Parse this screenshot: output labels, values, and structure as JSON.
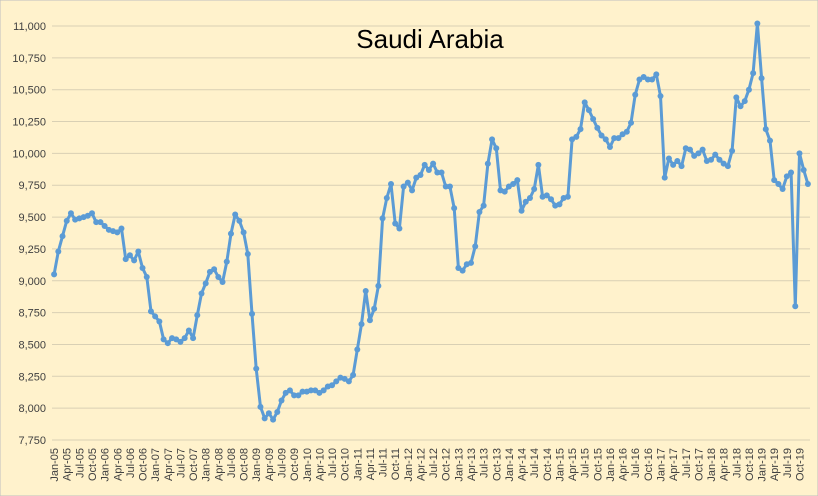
{
  "chart_data": {
    "type": "line",
    "title": "Saudi Arabia",
    "categories": [
      "Jan-05",
      null,
      null,
      "Apr-05",
      null,
      null,
      "Jul-05",
      null,
      null,
      "Oct-05",
      null,
      null,
      "Jan-06",
      null,
      null,
      "Apr-06",
      null,
      null,
      "Jul-06",
      null,
      null,
      "Oct-06",
      null,
      null,
      "Jan-07",
      null,
      null,
      "Apr-07",
      null,
      null,
      "Jul-07",
      null,
      null,
      "Oct-07",
      null,
      null,
      "Jan-08",
      null,
      null,
      "Apr-08",
      null,
      null,
      "Jul-08",
      null,
      null,
      "Oct-08",
      null,
      null,
      "Jan-09",
      null,
      null,
      "Apr-09",
      null,
      null,
      "Jul-09",
      null,
      null,
      "Oct-09",
      null,
      null,
      "Jan-10",
      null,
      null,
      "Apr-10",
      null,
      null,
      "Jul-10",
      null,
      null,
      "Oct-10",
      null,
      null,
      "Jan-11",
      null,
      null,
      "Apr-11",
      null,
      null,
      "Jul-11",
      null,
      null,
      "Oct-11",
      null,
      null,
      "Jan-12",
      null,
      null,
      "Apr-12",
      null,
      null,
      "Jul-12",
      null,
      null,
      "Oct-12",
      null,
      null,
      "Jan-13",
      null,
      null,
      "Apr-13",
      null,
      null,
      "Jul-13",
      null,
      null,
      "Oct-13",
      null,
      null,
      "Jan-14",
      null,
      null,
      "Apr-14",
      null,
      null,
      "Jul-14",
      null,
      null,
      "Oct-14",
      null,
      null,
      "Jan-15",
      null,
      null,
      "Apr-15",
      null,
      null,
      "Jul-15",
      null,
      null,
      "Oct-15",
      null,
      null,
      "Jan-16",
      null,
      null,
      "Apr-16",
      null,
      null,
      "Jul-16",
      null,
      null,
      "Oct-16",
      null,
      null,
      "Jan-17",
      null,
      null,
      "Apr-17",
      null,
      null,
      "Jul-17",
      null,
      null,
      "Oct-17",
      null,
      null,
      "Jan-18",
      null,
      null,
      "Apr-18",
      null,
      null,
      "Jul-18",
      null,
      null,
      "Oct-18",
      null,
      null,
      "Jan-19",
      null,
      null,
      "Apr-19",
      null,
      null,
      "Jul-19",
      null,
      null,
      "Oct-19",
      null,
      null
    ],
    "values": [
      9050,
      9230,
      9350,
      9470,
      9530,
      9480,
      9490,
      9500,
      9510,
      9530,
      9460,
      9460,
      9430,
      9400,
      9390,
      9380,
      9410,
      9170,
      9200,
      9160,
      9230,
      9100,
      9030,
      8760,
      8720,
      8680,
      8540,
      8510,
      8550,
      8540,
      8520,
      8550,
      8610,
      8550,
      8730,
      8900,
      8980,
      9070,
      9090,
      9030,
      8990,
      9150,
      9370,
      9520,
      9470,
      9380,
      9210,
      8740,
      8310,
      8010,
      7920,
      7960,
      7910,
      7970,
      8060,
      8120,
      8140,
      8100,
      8100,
      8130,
      8130,
      8140,
      8140,
      8120,
      8140,
      8170,
      8180,
      8210,
      8240,
      8230,
      8210,
      8260,
      8460,
      8660,
      8920,
      8690,
      8780,
      8960,
      9490,
      9650,
      9760,
      9450,
      9410,
      9740,
      9770,
      9710,
      9810,
      9830,
      9910,
      9870,
      9920,
      9850,
      9850,
      9740,
      9740,
      9570,
      9100,
      9080,
      9130,
      9140,
      9270,
      9540,
      9590,
      9920,
      10110,
      10040,
      9710,
      9700,
      9740,
      9760,
      9790,
      9550,
      9620,
      9650,
      9720,
      9910,
      9660,
      9670,
      9640,
      9590,
      9600,
      9650,
      9660,
      10110,
      10130,
      10190,
      10400,
      10340,
      10270,
      10200,
      10140,
      10110,
      10050,
      10120,
      10120,
      10150,
      10170,
      10240,
      10460,
      10580,
      10600,
      10580,
      10580,
      10620,
      10450,
      9810,
      9960,
      9910,
      9940,
      9900,
      10040,
      10030,
      9980,
      10000,
      10030,
      9940,
      9950,
      9990,
      9950,
      9920,
      9900,
      10020,
      10440,
      10370,
      10410,
      10500,
      10630,
      11020,
      10590,
      10190,
      10100,
      9790,
      9760,
      9720,
      9820,
      9850,
      8800,
      10000,
      9870,
      9760
    ],
    "color": "#5b9bd5",
    "ylim": [
      7750,
      11000
    ],
    "yticks": [
      {
        "value": 7750,
        "label": "7,750"
      },
      {
        "value": 8000,
        "label": "8,000"
      },
      {
        "value": 8250,
        "label": "8,250"
      },
      {
        "value": 8500,
        "label": "8,500"
      },
      {
        "value": 8750,
        "label": "8,750"
      },
      {
        "value": 9000,
        "label": "9,000"
      },
      {
        "value": 9250,
        "label": "9,250"
      },
      {
        "value": 9500,
        "label": "9,500"
      },
      {
        "value": 9750,
        "label": "9,750"
      },
      {
        "value": 10000,
        "label": "10,000"
      },
      {
        "value": 10250,
        "label": "10,250"
      },
      {
        "value": 10500,
        "label": "10,500"
      },
      {
        "value": 10750,
        "label": "10,750"
      },
      {
        "value": 11000,
        "label": "11,000"
      }
    ],
    "grid": true
  }
}
